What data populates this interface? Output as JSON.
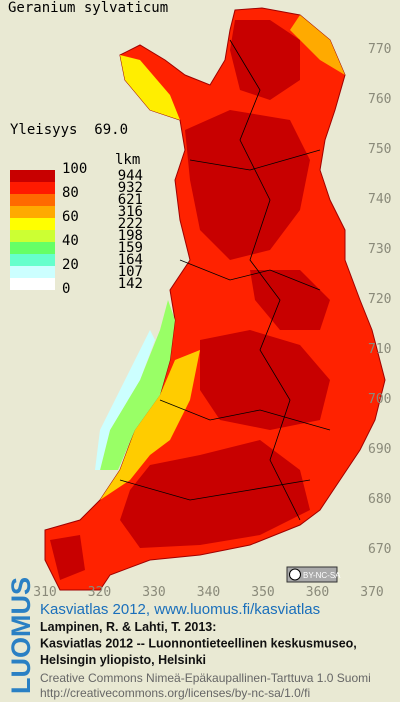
{
  "header": {
    "title": "Geranium sylvaticum",
    "frequency": "Yleisyys  69.0"
  },
  "legend": {
    "count_header": "lkm",
    "scale_labels": [
      "100",
      "80",
      "60",
      "40",
      "20",
      "0"
    ],
    "classes": [
      {
        "color": "#c80000",
        "count": "944"
      },
      {
        "color": "#ff1a00",
        "count": "932"
      },
      {
        "color": "#ff6a00",
        "count": "621"
      },
      {
        "color": "#ffaa00",
        "count": "316"
      },
      {
        "color": "#ffff00",
        "count": "222"
      },
      {
        "color": "#ccff33",
        "count": "198"
      },
      {
        "color": "#66ff66",
        "count": "159"
      },
      {
        "color": "#66ffcc",
        "count": "164"
      },
      {
        "color": "#ccffff",
        "count": "107"
      },
      {
        "color": "#ffffff",
        "count": "142"
      }
    ]
  },
  "map": {
    "y_labels": [
      "770",
      "760",
      "750",
      "740",
      "730",
      "720",
      "710",
      "700",
      "690",
      "680",
      "670"
    ],
    "x_labels": [
      "310",
      "320",
      "330",
      "340",
      "350",
      "360",
      "370"
    ],
    "license_badge": "BY-NC-SA"
  },
  "footer": {
    "logo": "LUOMUS",
    "link": "Kasviatlas 2012, www.luomus.fi/kasviatlas",
    "citation": [
      "Lampinen, R. & Lahti, T. 2013:",
      "Kasviatlas 2012 -- Luonnontieteellinen keskusmuseo,",
      "Helsingin yliopisto, Helsinki"
    ],
    "license": [
      "Creative Commons Nimeä-Epäkaupallinen-Tarttuva 1.0 Suomi",
      "http://creativecommons.org/licenses/by-nc-sa/1.0/fi"
    ]
  }
}
